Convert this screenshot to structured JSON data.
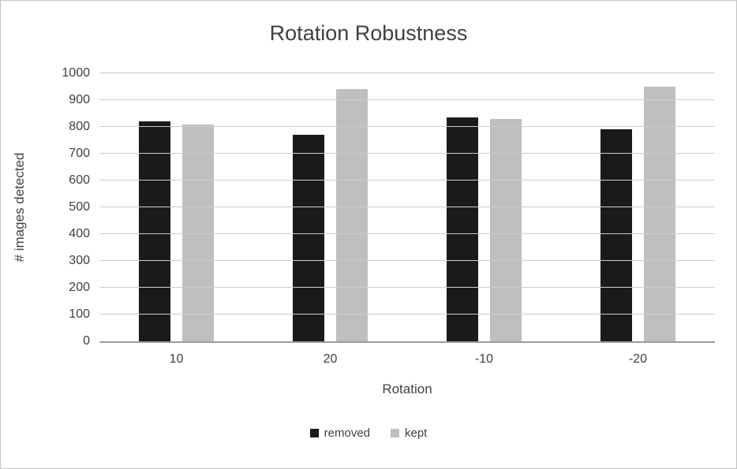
{
  "chart_data": {
    "type": "bar",
    "title": "Rotation Robustness",
    "xlabel": "Rotation",
    "ylabel": "# images detected",
    "categories": [
      "10",
      "20",
      "-10",
      "-20"
    ],
    "series": [
      {
        "name": "removed",
        "color": "#1a1a1a",
        "values": [
          820,
          770,
          835,
          790
        ]
      },
      {
        "name": "kept",
        "color": "#bfbfbf",
        "values": [
          810,
          940,
          830,
          950
        ]
      }
    ],
    "ylim": [
      0,
      1000
    ],
    "ytick_step": 100,
    "grid": true,
    "legend_position": "bottom",
    "colors": {
      "gridline": "#cccccc",
      "axis_line": "#9c9c9c",
      "text": "#404040"
    }
  }
}
